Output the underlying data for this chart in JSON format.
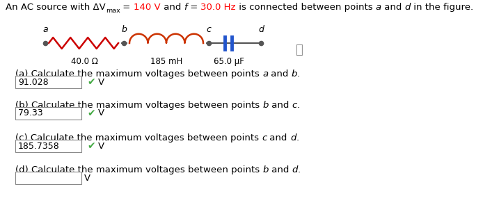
{
  "background_color": "#ffffff",
  "title_fs": 9.5,
  "circuit": {
    "wire_color": "#555555",
    "resistor_color": "#cc0000",
    "inductor_color": "#cc3300",
    "capacitor_color": "#2255cc",
    "point_labels": [
      "a",
      "b",
      "c",
      "d"
    ],
    "comp_labels": [
      "40.0 Ω",
      "185 mH",
      "65.0 μF"
    ]
  },
  "questions": [
    {
      "letter": "a",
      "p1": "a",
      "p2": "b",
      "answer": "91.028",
      "answered": true
    },
    {
      "letter": "b",
      "p1": "b",
      "p2": "c",
      "answer": "79.33",
      "answered": true
    },
    {
      "letter": "c",
      "p1": "c",
      "p2": "d",
      "answer": "185.7358",
      "answered": true
    },
    {
      "letter": "d",
      "p1": "b",
      "p2": "d",
      "answer": "",
      "answered": false
    }
  ],
  "check_color": "#44aa44",
  "unit": "V"
}
